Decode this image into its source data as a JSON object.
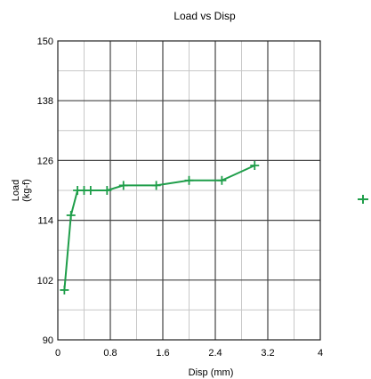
{
  "chart_data": {
    "type": "line",
    "title": "Load vs Disp",
    "xlabel": "Disp (mm)",
    "ylabel": [
      "Load",
      "(kg-f)"
    ],
    "xlim": [
      0,
      4
    ],
    "ylim": [
      90,
      150
    ],
    "xticks": [
      "0",
      "0.8",
      "1.6",
      "2.4",
      "3.2",
      "4"
    ],
    "xtick_values": [
      0,
      0.8,
      1.6,
      2.4,
      3.2,
      4
    ],
    "yticks": [
      "150",
      "138",
      "126",
      "114",
      "102",
      "90"
    ],
    "ytick_values": [
      150,
      138,
      126,
      114,
      102,
      90
    ],
    "grid": true,
    "legend": "right",
    "series": [
      {
        "color": "#1f9e4a",
        "marker": "plus",
        "x": [
          0.1,
          0.2,
          0.3,
          0.4,
          0.5,
          0.75,
          1.0,
          1.5,
          2.0,
          2.5,
          3.0
        ],
        "y": [
          100,
          115,
          120,
          120,
          120,
          120,
          121,
          121,
          122,
          122,
          125
        ]
      }
    ]
  }
}
